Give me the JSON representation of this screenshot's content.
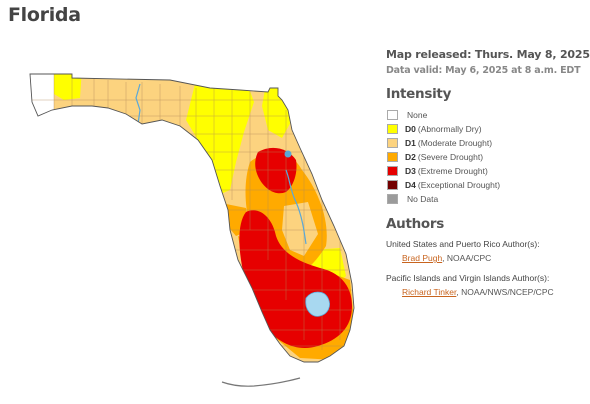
{
  "page": {
    "title": "Florida"
  },
  "map": {
    "released_label": "Map released: Thurs. May 8, 2025",
    "valid_label": "Data valid: May 6, 2025 at 8 a.m. EDT"
  },
  "intensity": {
    "heading": "Intensity",
    "items": [
      {
        "code": "",
        "label": "None",
        "color": "#ffffff"
      },
      {
        "code": "D0",
        "label": "(Abnormally Dry)",
        "color": "#ffff00"
      },
      {
        "code": "D1",
        "label": "(Moderate Drought)",
        "color": "#fcd37f"
      },
      {
        "code": "D2",
        "label": "(Severe Drought)",
        "color": "#ffaa00"
      },
      {
        "code": "D3",
        "label": "(Extreme Drought)",
        "color": "#e60000"
      },
      {
        "code": "D4",
        "label": "(Exceptional Drought)",
        "color": "#730000"
      },
      {
        "code": "",
        "label": "No Data",
        "color": "#9b9b9b"
      }
    ]
  },
  "authors": {
    "heading": "Authors",
    "us_role": "United States and Puerto Rico Author(s):",
    "us_name": "Brad Pugh",
    "us_org": ", NOAA/CPC",
    "pacific_role": "Pacific Islands and Virgin Islands Author(s):",
    "pacific_name": "Richard Tinker",
    "pacific_org": ", NOAA/NWS/NCEP/CPC"
  },
  "colors": {
    "none": "#ffffff",
    "d0": "#ffff00",
    "d1": "#fcd37f",
    "d2": "#ffaa00",
    "d3": "#e60000",
    "d4": "#730000",
    "water": "#5aa8d8",
    "lake": "#a8d8f0",
    "link": "#c8641e"
  }
}
